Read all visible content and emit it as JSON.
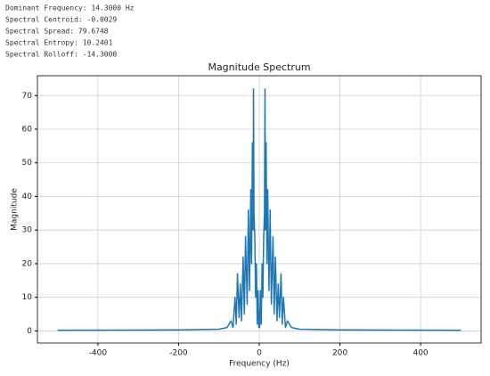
{
  "header_lines": [
    "Dominant Frequency: 14.3000 Hz",
    "Spectral Centroid: -0.0029",
    "Spectral Spread: 79.6748",
    "Spectral Entropy: 10.2401",
    "Spectral Rolloff: -14.3000"
  ],
  "chart_data": {
    "type": "line",
    "title": "Magnitude Spectrum",
    "x_label": "Frequency (Hz)",
    "y_label": "Magnitude",
    "x": [
      -500,
      -200,
      -100,
      -80,
      -70,
      -65,
      -60,
      -57,
      -54,
      -50,
      -47,
      -44,
      -40,
      -37,
      -34,
      -30,
      -27,
      -24,
      -21,
      -19,
      -17,
      -15,
      -14.3,
      -13,
      -11,
      -9,
      -7,
      -5,
      -3,
      -1,
      0,
      1,
      3,
      5,
      7,
      9,
      11,
      13,
      14.3,
      15,
      17,
      19,
      21,
      24,
      27,
      30,
      34,
      37,
      40,
      44,
      47,
      50,
      54,
      57,
      60,
      65,
      70,
      80,
      100,
      200,
      500
    ],
    "series": [
      {
        "name": "Magnitude",
        "color": "#1f77b4",
        "values": [
          0.2,
          0.3,
          0.5,
          1,
          3,
          1,
          10,
          2,
          17,
          4,
          14,
          3,
          22,
          5,
          28,
          8,
          36,
          12,
          42,
          20,
          56,
          30,
          72,
          35,
          28,
          10,
          20,
          2,
          12,
          1,
          5,
          1,
          12,
          2,
          20,
          10,
          28,
          35,
          72,
          30,
          56,
          20,
          42,
          12,
          36,
          8,
          28,
          5,
          22,
          3,
          14,
          4,
          17,
          2,
          10,
          1,
          3,
          1,
          0.5,
          0.3,
          0.2
        ]
      }
    ],
    "xlim": [
      -550,
      550
    ],
    "ylim": [
      -3.6,
      75.9
    ],
    "xticks": [
      -400,
      -200,
      0,
      200,
      400
    ],
    "yticks": [
      0,
      10,
      20,
      30,
      40,
      50,
      60,
      70
    ],
    "grid": true
  }
}
